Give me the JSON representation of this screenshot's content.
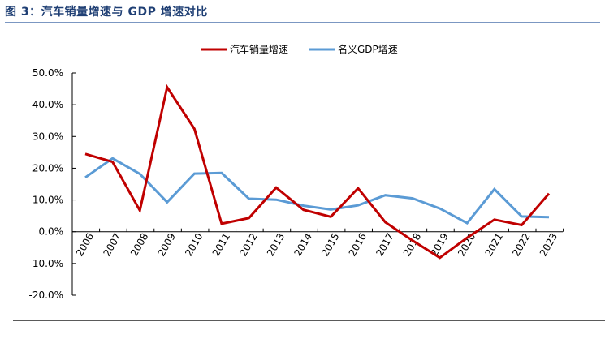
{
  "figure_title": "图 3：汽车销量增速与 GDP 增速对比",
  "colors": {
    "series_1": "#c00000",
    "series_2": "#5b9bd5",
    "title": "#1f3f74"
  },
  "chart_data": {
    "type": "line",
    "title": "",
    "xlabel": "",
    "ylabel": "",
    "x": [
      "2006",
      "2007",
      "2008",
      "2009",
      "2010",
      "2011",
      "2012",
      "2013",
      "2014",
      "2015",
      "2016",
      "2017",
      "2018",
      "2019",
      "2020",
      "2021",
      "2022",
      "2023"
    ],
    "ylim": [
      -20,
      50
    ],
    "yticks": [
      "50.0%",
      "40.0%",
      "30.0%",
      "20.0%",
      "10.0%",
      "0.0%",
      "-10.0%",
      "-20.0%"
    ],
    "grid": false,
    "legend": "top-center",
    "series": [
      {
        "name": "汽车销量增速",
        "values": [
          24.5,
          22.0,
          6.7,
          45.5,
          32.4,
          2.5,
          4.3,
          13.9,
          6.9,
          4.7,
          13.7,
          3.0,
          -2.8,
          -8.2,
          -1.9,
          3.8,
          2.1,
          12.0
        ]
      },
      {
        "name": "名义GDP增速",
        "values": [
          17.1,
          23.1,
          18.2,
          9.3,
          18.3,
          18.5,
          10.4,
          10.1,
          8.2,
          7.0,
          8.3,
          11.5,
          10.5,
          7.3,
          2.7,
          13.4,
          4.8,
          4.6
        ]
      }
    ]
  }
}
